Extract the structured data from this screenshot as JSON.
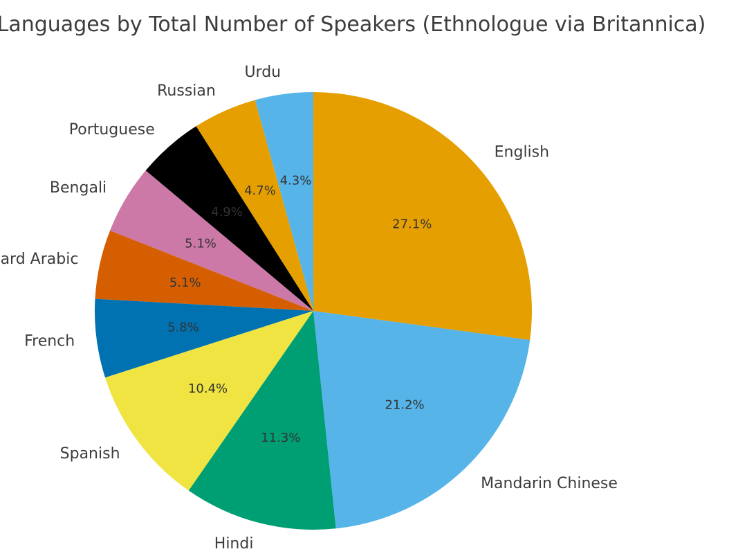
{
  "chart_data": {
    "type": "pie",
    "title": "Languages by Total Number of Speakers (Ethnologue via Britannica)",
    "start_angle_deg": 90,
    "direction": "counterclockwise",
    "slices": [
      {
        "label": "Urdu",
        "value": 4.3,
        "value_label": "4.3%",
        "color": "#56B4E9"
      },
      {
        "label": "Russian",
        "value": 4.7,
        "value_label": "4.7%",
        "color": "#E69F00"
      },
      {
        "label": "Portuguese",
        "value": 4.9,
        "value_label": "4.9%",
        "color": "#000000"
      },
      {
        "label": "Bengali",
        "value": 5.1,
        "value_label": "5.1%",
        "color": "#CC79A7"
      },
      {
        "label": "Modern Standard Arabic",
        "value": 5.1,
        "value_label": "5.1%",
        "color": "#D55E00"
      },
      {
        "label": "French",
        "value": 5.8,
        "value_label": "5.8%",
        "color": "#0072B2"
      },
      {
        "label": "Spanish",
        "value": 10.4,
        "value_label": "10.4%",
        "color": "#F0E442"
      },
      {
        "label": "Hindi",
        "value": 11.3,
        "value_label": "11.3%",
        "color": "#009E73"
      },
      {
        "label": "Mandarin Chinese",
        "value": 21.2,
        "value_label": "21.2%",
        "color": "#56B4E9"
      },
      {
        "label": "English",
        "value": 27.1,
        "value_label": "27.1%",
        "color": "#E69F00"
      }
    ]
  }
}
